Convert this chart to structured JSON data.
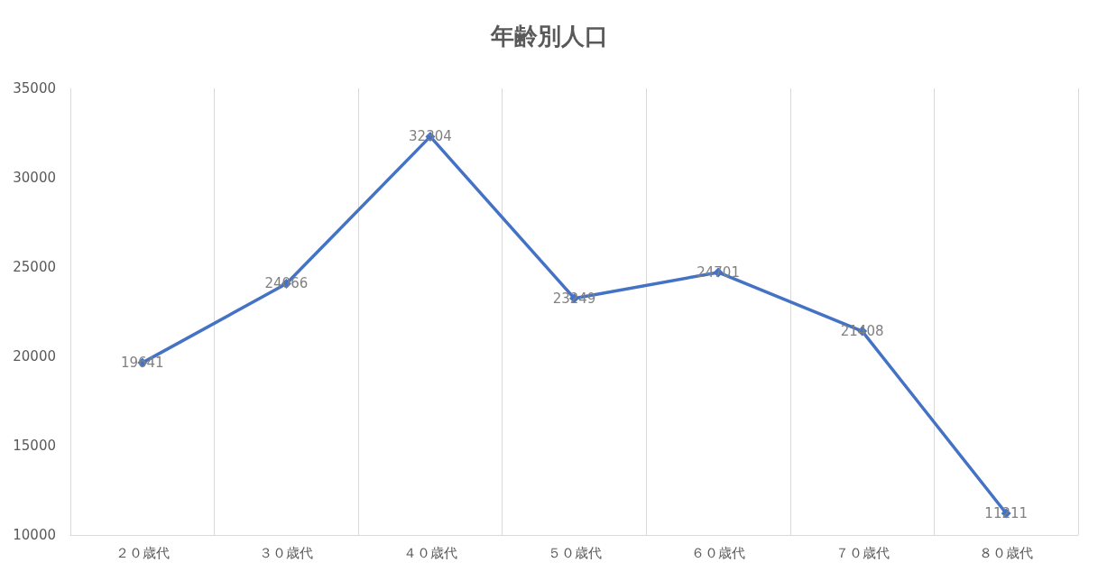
{
  "chart_data": {
    "type": "line",
    "title": "年齢別人口",
    "categories": [
      "２０歳代",
      "３０歳代",
      "４０歳代",
      "５０歳代",
      "６０歳代",
      "７０歳代",
      "８０歳代"
    ],
    "series": [
      {
        "color": "#4472c4",
        "values": [
          19641,
          24066,
          32304,
          23249,
          24701,
          21408,
          11211
        ]
      }
    ],
    "ylim": [
      10000,
      35000
    ],
    "yticks": [
      10000,
      15000,
      20000,
      25000,
      30000,
      35000
    ],
    "grid": "x",
    "marker": "diamond",
    "line_style": "solid",
    "data_labels": true
  }
}
